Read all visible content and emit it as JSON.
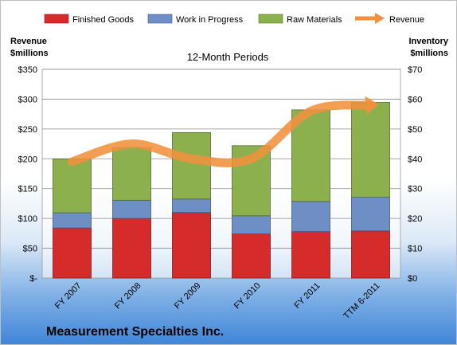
{
  "chart_data": {
    "type": "bar",
    "subtitle": "12-Month Periods",
    "company": "Measurement Specialties Inc.",
    "left_axis": {
      "label_line1": "Revenue",
      "label_line2": "$millions",
      "range": [
        0,
        350
      ],
      "ticks": [
        "$-",
        "$50",
        "$100",
        "$150",
        "$200",
        "$250",
        "$300",
        "$350"
      ]
    },
    "right_axis": {
      "label_line1": "Inventory",
      "label_line2": "$millions",
      "range": [
        0,
        70
      ],
      "ticks": [
        "$0",
        "$10",
        "$20",
        "$30",
        "$40",
        "$50",
        "$60",
        "$70"
      ]
    },
    "categories": [
      "FY 2007",
      "FY 2008",
      "FY 2009",
      "FY 2010",
      "FY 2011",
      "TTM 6-2011"
    ],
    "series": [
      {
        "name": "Finished Goods",
        "type": "stacked-bar",
        "axis": "right",
        "color": "#d62b2b",
        "values": [
          16.8,
          20.0,
          22.0,
          14.8,
          15.6,
          15.8
        ]
      },
      {
        "name": "Work in Progress",
        "type": "stacked-bar",
        "axis": "right",
        "color": "#6d8fc6",
        "values": [
          5.1,
          6.1,
          4.5,
          6.1,
          10.1,
          11.3
        ]
      },
      {
        "name": "Raw Materials",
        "type": "stacked-bar",
        "axis": "right",
        "color": "#8db04f",
        "values": [
          18.0,
          17.7,
          22.3,
          23.5,
          30.7,
          31.8
        ]
      },
      {
        "name": "Revenue",
        "type": "line",
        "axis": "left",
        "color": "#f0913e",
        "values": [
          195,
          225,
          200,
          200,
          280,
          290
        ]
      }
    ],
    "legend_position": "top",
    "grid": true
  }
}
